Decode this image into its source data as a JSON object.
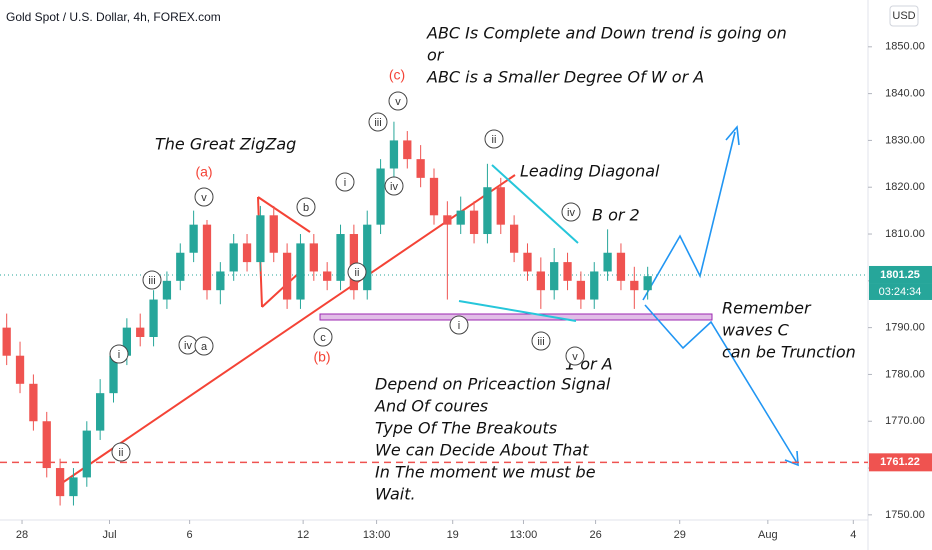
{
  "chart_data": {
    "type": "candlestick",
    "title": "Gold Spot / U.S. Dollar, 4h, FOREX.com",
    "currency": "USD",
    "open": [
      1790,
      1784,
      1778,
      1770,
      1760,
      1754,
      1758,
      1768,
      1776,
      1784,
      1790,
      1788,
      1796,
      1800,
      1806,
      1812,
      1798,
      1802,
      1808,
      1804,
      1814,
      1806,
      1796,
      1808,
      1802,
      1800,
      1810,
      1798,
      1812,
      1824,
      1830,
      1826,
      1822,
      1814,
      1812,
      1815,
      1810,
      1820,
      1812,
      1806,
      1802,
      1798,
      1804,
      1800,
      1796,
      1802,
      1806,
      1800,
      1798
    ],
    "high": [
      1793,
      1787,
      1780,
      1772,
      1762,
      1760,
      1770,
      1779,
      1786,
      1792,
      1793,
      1798,
      1802,
      1808,
      1815,
      1813,
      1804,
      1810,
      1810,
      1816,
      1816,
      1808,
      1810,
      1810,
      1804,
      1812,
      1812,
      1815,
      1826,
      1834,
      1832,
      1829,
      1824,
      1817,
      1818,
      1817,
      1825,
      1822,
      1814,
      1808,
      1805,
      1807,
      1806,
      1802,
      1804,
      1811,
      1808,
      1803,
      1803
    ],
    "low": [
      1782,
      1776,
      1768,
      1758,
      1752,
      1752,
      1756,
      1766,
      1774,
      1782,
      1786,
      1786,
      1794,
      1798,
      1804,
      1796,
      1795,
      1800,
      1802,
      1802,
      1804,
      1794,
      1794,
      1800,
      1798,
      1798,
      1796,
      1796,
      1810,
      1822,
      1824,
      1820,
      1812,
      1796,
      1810,
      1808,
      1808,
      1810,
      1804,
      1800,
      1794,
      1796,
      1798,
      1794,
      1794,
      1800,
      1798,
      1794,
      1796
    ],
    "close": [
      1784,
      1778,
      1770,
      1760,
      1754,
      1758,
      1768,
      1776,
      1784,
      1790,
      1788,
      1796,
      1800,
      1806,
      1812,
      1798,
      1802,
      1808,
      1804,
      1814,
      1806,
      1796,
      1808,
      1802,
      1800,
      1810,
      1798,
      1812,
      1824,
      1830,
      1826,
      1822,
      1814,
      1812,
      1815,
      1810,
      1820,
      1812,
      1806,
      1802,
      1798,
      1804,
      1800,
      1796,
      1802,
      1806,
      1800,
      1798,
      1801
    ],
    "up_color": "#26a69a",
    "down_color": "#ef5350",
    "xlim": [
      -0.5,
      64.5
    ],
    "xticks": [
      {
        "value": 1.15,
        "label": "28"
      },
      {
        "value": 7.7,
        "label": "Jul"
      },
      {
        "value": 13.7,
        "label": "6"
      },
      {
        "value": 22.2,
        "label": "12"
      },
      {
        "value": 27.7,
        "label": "13:00"
      },
      {
        "value": 33.4,
        "label": "19"
      },
      {
        "value": 38.7,
        "label": "13:00"
      },
      {
        "value": 44.1,
        "label": "26"
      },
      {
        "value": 50.4,
        "label": "29"
      },
      {
        "value": 57,
        "label": "Aug"
      },
      {
        "value": 63.4,
        "label": "4"
      }
    ],
    "ylim": [
      1748.9,
      1860
    ],
    "yticks": [
      {
        "value": 1750,
        "label": "1750.00"
      },
      {
        "value": 1760,
        "label": "1760.00"
      },
      {
        "value": 1770,
        "label": "1770.00"
      },
      {
        "value": 1780,
        "label": "1780.00"
      },
      {
        "value": 1790,
        "label": "1790.00"
      },
      {
        "value": 1800,
        "label": "1800.00"
      },
      {
        "value": 1810,
        "label": "1810.00"
      },
      {
        "value": 1820,
        "label": "1820.00"
      },
      {
        "value": 1830,
        "label": "1830.00"
      },
      {
        "value": 1840,
        "label": "1840.00"
      },
      {
        "value": 1850,
        "label": "1850.00"
      }
    ],
    "last_price": 1801.25,
    "countdown": "03:24:34",
    "support_level": 1761.22,
    "annotations": [
      "ABC Is Complete and Down trend is going on",
      "or",
      "ABC is a Smaller Degree Of W or A",
      "The Great ZigZag",
      "Leading Diagonal",
      "B or 2",
      "Remember",
      "waves C",
      "can be Trunction",
      "1 or A",
      "Depend on Priceaction Signal",
      "And Of coures",
      "Type Of The Breakouts",
      "We can Decide About That",
      "In The moment we must be",
      "Wait."
    ],
    "wave_labels": [
      "(c)",
      "v",
      "iii",
      "iv",
      "i",
      "ii",
      "(a)",
      "v",
      "iii",
      "iv",
      "a",
      "i",
      "ii",
      "b",
      "c",
      "(b)",
      "ii",
      "iv",
      "i",
      "iii",
      "v"
    ]
  }
}
